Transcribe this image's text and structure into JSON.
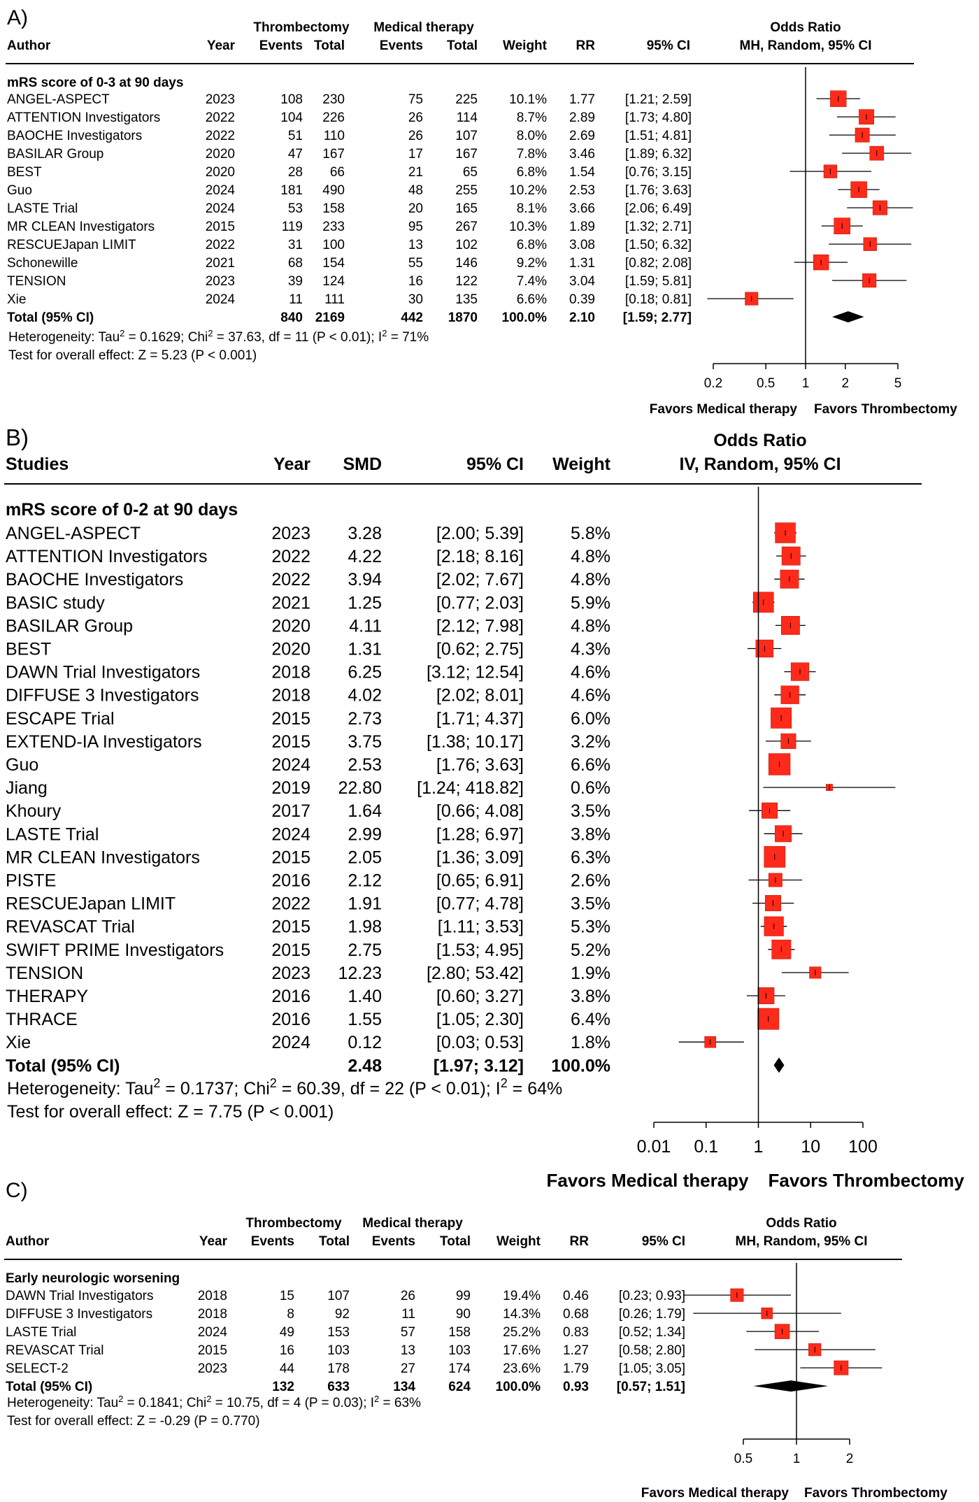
{
  "colors": {
    "box": "#ff2a1a",
    "box_stroke": "#b01000",
    "line": "#000000",
    "diamond": "#000000"
  },
  "chart_data": [
    {
      "type": "forest",
      "panel_label": "A)",
      "title": "Odds Ratio",
      "subtitle": "MH, Random, 95% CI",
      "group_header_1": "Thrombectomy",
      "group_header_2": "Medical therapy",
      "columns": [
        "Author",
        "Year",
        "Events",
        "Total",
        "Events",
        "Total",
        "Weight",
        "RR",
        "95% CI"
      ],
      "subgroup": "mRS score of 0-3 at 90 days",
      "scale": "log",
      "xlim": [
        0.2,
        5
      ],
      "xticks": [
        0.2,
        0.5,
        1,
        2,
        5
      ],
      "xtick_labels": [
        "0.2",
        "0.5",
        "1",
        "2",
        "5"
      ],
      "left_label": "Favors Medical therapy",
      "right_label": "Favors Thrombectomy",
      "studies": [
        {
          "name": "ANGEL-ASPECT",
          "year": "2023",
          "ev1": "108",
          "tot1": "230",
          "ev2": "75",
          "tot2": "225",
          "weight": "10.1%",
          "est_label": "1.77",
          "ci_label": "[1.21; 2.59]",
          "est": 1.77,
          "lo": 1.21,
          "hi": 2.59,
          "w": 10.1
        },
        {
          "name": "ATTENTION Investigators",
          "year": "2022",
          "ev1": "104",
          "tot1": "226",
          "ev2": "26",
          "tot2": "114",
          "weight": "8.7%",
          "est_label": "2.89",
          "ci_label": "[1.73; 4.80]",
          "est": 2.89,
          "lo": 1.73,
          "hi": 4.8,
          "w": 8.7
        },
        {
          "name": "BAOCHE Investigators",
          "year": "2022",
          "ev1": "51",
          "tot1": "110",
          "ev2": "26",
          "tot2": "107",
          "weight": "8.0%",
          "est_label": "2.69",
          "ci_label": "[1.51; 4.81]",
          "est": 2.69,
          "lo": 1.51,
          "hi": 4.81,
          "w": 8.0
        },
        {
          "name": "BASILAR Group",
          "year": "2020",
          "ev1": "47",
          "tot1": "167",
          "ev2": "17",
          "tot2": "167",
          "weight": "7.8%",
          "est_label": "3.46",
          "ci_label": "[1.89; 6.32]",
          "est": 3.46,
          "lo": 1.89,
          "hi": 6.32,
          "w": 7.8
        },
        {
          "name": "BEST",
          "year": "2020",
          "ev1": "28",
          "tot1": "66",
          "ev2": "21",
          "tot2": "65",
          "weight": "6.8%",
          "est_label": "1.54",
          "ci_label": "[0.76; 3.15]",
          "est": 1.54,
          "lo": 0.76,
          "hi": 3.15,
          "w": 6.8
        },
        {
          "name": "Guo",
          "year": "2024",
          "ev1": "181",
          "tot1": "490",
          "ev2": "48",
          "tot2": "255",
          "weight": "10.2%",
          "est_label": "2.53",
          "ci_label": "[1.76; 3.63]",
          "est": 2.53,
          "lo": 1.76,
          "hi": 3.63,
          "w": 10.2
        },
        {
          "name": "LASTE Trial",
          "year": "2024",
          "ev1": "53",
          "tot1": "158",
          "ev2": "20",
          "tot2": "165",
          "weight": "8.1%",
          "est_label": "3.66",
          "ci_label": "[2.06; 6.49]",
          "est": 3.66,
          "lo": 2.06,
          "hi": 6.49,
          "w": 8.1
        },
        {
          "name": "MR CLEAN Investigators",
          "year": "2015",
          "ev1": "119",
          "tot1": "233",
          "ev2": "95",
          "tot2": "267",
          "weight": "10.3%",
          "est_label": "1.89",
          "ci_label": "[1.32; 2.71]",
          "est": 1.89,
          "lo": 1.32,
          "hi": 2.71,
          "w": 10.3
        },
        {
          "name": "RESCUEJapan LIMIT",
          "year": "2022",
          "ev1": "31",
          "tot1": "100",
          "ev2": "13",
          "tot2": "102",
          "weight": "6.8%",
          "est_label": "3.08",
          "ci_label": "[1.50; 6.32]",
          "est": 3.08,
          "lo": 1.5,
          "hi": 6.32,
          "w": 6.8
        },
        {
          "name": "Schonewille",
          "year": "2021",
          "ev1": "68",
          "tot1": "154",
          "ev2": "55",
          "tot2": "146",
          "weight": "9.2%",
          "est_label": "1.31",
          "ci_label": "[0.82; 2.08]",
          "est": 1.31,
          "lo": 0.82,
          "hi": 2.08,
          "w": 9.2
        },
        {
          "name": "TENSION",
          "year": "2023",
          "ev1": "39",
          "tot1": "124",
          "ev2": "16",
          "tot2": "122",
          "weight": "7.4%",
          "est_label": "3.04",
          "ci_label": "[1.59; 5.81]",
          "est": 3.04,
          "lo": 1.59,
          "hi": 5.81,
          "w": 7.4
        },
        {
          "name": "Xie",
          "year": "2024",
          "ev1": "11",
          "tot1": "111",
          "ev2": "30",
          "tot2": "135",
          "weight": "6.6%",
          "est_label": "0.39",
          "ci_label": "[0.18; 0.81]",
          "est": 0.39,
          "lo": 0.18,
          "hi": 0.81,
          "w": 6.6
        }
      ],
      "total": {
        "name": "Total (95% CI)",
        "ev1": "840",
        "tot1": "2169",
        "ev2": "442",
        "tot2": "1870",
        "weight": "100.0%",
        "est_label": "2.10",
        "ci_label": "[1.59; 2.77]",
        "est": 2.1,
        "lo": 1.59,
        "hi": 2.77
      },
      "heterogeneity": {
        "a": "Heterogeneity: Tau",
        "b": " = 0.1629; Chi",
        "c": " = 37.63, df = 11 (P < 0.01); I",
        "d": " = 71%",
        "sup": "2"
      },
      "overall": "Test for overall effect: Z = 5.23 (P < 0.001)"
    },
    {
      "type": "forest",
      "panel_label": "B)",
      "title": "Odds Ratio",
      "subtitle": "IV, Random, 95% CI",
      "columns": [
        "Studies",
        "Year",
        "SMD",
        "95% CI",
        "Weight"
      ],
      "subgroup": "mRS score of 0-2 at 90 days",
      "scale": "log",
      "xlim": [
        0.01,
        100
      ],
      "xticks": [
        0.01,
        0.1,
        1,
        10,
        100
      ],
      "xtick_labels": [
        "0.01",
        "0.1",
        "1",
        "10",
        "100"
      ],
      "left_label": "Favors Medical therapy",
      "right_label": "Favors Thrombectomy",
      "studies": [
        {
          "name": "ANGEL-ASPECT",
          "year": "2023",
          "est_label": "3.28",
          "ci_label": "[2.00;   5.39]",
          "weight": "5.8%",
          "est": 3.28,
          "lo": 2.0,
          "hi": 5.39,
          "w": 5.8
        },
        {
          "name": "ATTENTION Investigators",
          "year": "2022",
          "est_label": "4.22",
          "ci_label": "[2.18;   8.16]",
          "weight": "4.8%",
          "est": 4.22,
          "lo": 2.18,
          "hi": 8.16,
          "w": 4.8
        },
        {
          "name": "BAOCHE Investigators",
          "year": "2022",
          "est_label": "3.94",
          "ci_label": "[2.02;   7.67]",
          "weight": "4.8%",
          "est": 3.94,
          "lo": 2.02,
          "hi": 7.67,
          "w": 4.8
        },
        {
          "name": "BASIC study",
          "year": "2021",
          "est_label": "1.25",
          "ci_label": "[0.77;   2.03]",
          "weight": "5.9%",
          "est": 1.25,
          "lo": 0.77,
          "hi": 2.03,
          "w": 5.9
        },
        {
          "name": "BASILAR Group",
          "year": "2020",
          "est_label": "4.11",
          "ci_label": "[2.12;   7.98]",
          "weight": "4.8%",
          "est": 4.11,
          "lo": 2.12,
          "hi": 7.98,
          "w": 4.8
        },
        {
          "name": "BEST",
          "year": "2020",
          "est_label": "1.31",
          "ci_label": "[0.62;   2.75]",
          "weight": "4.3%",
          "est": 1.31,
          "lo": 0.62,
          "hi": 2.75,
          "w": 4.3
        },
        {
          "name": "DAWN Trial Investigators",
          "year": "2018",
          "est_label": "6.25",
          "ci_label": "[3.12; 12.54]",
          "weight": "4.6%",
          "est": 6.25,
          "lo": 3.12,
          "hi": 12.54,
          "w": 4.6
        },
        {
          "name": "DIFFUSE 3 Investigators",
          "year": "2018",
          "est_label": "4.02",
          "ci_label": "[2.02;   8.01]",
          "weight": "4.6%",
          "est": 4.02,
          "lo": 2.02,
          "hi": 8.01,
          "w": 4.6
        },
        {
          "name": "ESCAPE Trial",
          "year": "2015",
          "est_label": "2.73",
          "ci_label": "[1.71;   4.37]",
          "weight": "6.0%",
          "est": 2.73,
          "lo": 1.71,
          "hi": 4.37,
          "w": 6.0
        },
        {
          "name": "EXTEND-IA Investigators",
          "year": "2015",
          "est_label": "3.75",
          "ci_label": "[1.38; 10.17]",
          "weight": "3.2%",
          "est": 3.75,
          "lo": 1.38,
          "hi": 10.17,
          "w": 3.2
        },
        {
          "name": "Guo",
          "year": "2024",
          "est_label": "2.53",
          "ci_label": "[1.76;   3.63]",
          "weight": "6.6%",
          "est": 2.53,
          "lo": 1.76,
          "hi": 3.63,
          "w": 6.6
        },
        {
          "name": "Jiang",
          "year": "2019",
          "est_label": "22.80",
          "ci_label": "[1.24; 418.82]",
          "weight": "0.6%",
          "est": 22.8,
          "lo": 1.24,
          "hi": 418.82,
          "w": 0.6
        },
        {
          "name": "Khoury",
          "year": "2017",
          "est_label": "1.64",
          "ci_label": "[0.66;   4.08]",
          "weight": "3.5%",
          "est": 1.64,
          "lo": 0.66,
          "hi": 4.08,
          "w": 3.5
        },
        {
          "name": "LASTE Trial",
          "year": "2024",
          "est_label": "2.99",
          "ci_label": "[1.28;   6.97]",
          "weight": "3.8%",
          "est": 2.99,
          "lo": 1.28,
          "hi": 6.97,
          "w": 3.8
        },
        {
          "name": "MR CLEAN Investigators",
          "year": "2015",
          "est_label": "2.05",
          "ci_label": "[1.36;   3.09]",
          "weight": "6.3%",
          "est": 2.05,
          "lo": 1.36,
          "hi": 3.09,
          "w": 6.3
        },
        {
          "name": "PISTE",
          "year": "2016",
          "est_label": "2.12",
          "ci_label": "[0.65;   6.91]",
          "weight": "2.6%",
          "est": 2.12,
          "lo": 0.65,
          "hi": 6.91,
          "w": 2.6
        },
        {
          "name": "RESCUEJapan LIMIT",
          "year": "2022",
          "est_label": "1.91",
          "ci_label": "[0.77;   4.78]",
          "weight": "3.5%",
          "est": 1.91,
          "lo": 0.77,
          "hi": 4.78,
          "w": 3.5
        },
        {
          "name": "REVASCAT Trial",
          "year": "2015",
          "est_label": "1.98",
          "ci_label": "[1.11;   3.53]",
          "weight": "5.3%",
          "est": 1.98,
          "lo": 1.11,
          "hi": 3.53,
          "w": 5.3
        },
        {
          "name": "SWIFT PRIME Investigators",
          "year": "2015",
          "est_label": "2.75",
          "ci_label": "[1.53;   4.95]",
          "weight": "5.2%",
          "est": 2.75,
          "lo": 1.53,
          "hi": 4.95,
          "w": 5.2
        },
        {
          "name": "TENSION",
          "year": "2023",
          "est_label": "12.23",
          "ci_label": "[2.80; 53.42]",
          "weight": "1.9%",
          "est": 12.23,
          "lo": 2.8,
          "hi": 53.42,
          "w": 1.9
        },
        {
          "name": "THERAPY",
          "year": "2016",
          "est_label": "1.40",
          "ci_label": "[0.60;   3.27]",
          "weight": "3.8%",
          "est": 1.4,
          "lo": 0.6,
          "hi": 3.27,
          "w": 3.8
        },
        {
          "name": "THRACE",
          "year": "2016",
          "est_label": "1.55",
          "ci_label": "[1.05;   2.30]",
          "weight": "6.4%",
          "est": 1.55,
          "lo": 1.05,
          "hi": 2.3,
          "w": 6.4
        },
        {
          "name": "Xie",
          "year": "2024",
          "est_label": "0.12",
          "ci_label": "[0.03;   0.53]",
          "weight": "1.8%",
          "est": 0.12,
          "lo": 0.03,
          "hi": 0.53,
          "w": 1.8
        }
      ],
      "total": {
        "name": "Total (95% CI)",
        "est_label": "2.48",
        "ci_label": "[1.97;   3.12]",
        "weight": "100.0%",
        "est": 2.48,
        "lo": 1.97,
        "hi": 3.12
      },
      "heterogeneity": {
        "a": "Heterogeneity: Tau",
        "b": " = 0.1737; Chi",
        "c": " = 60.39, df = 22 (P < 0.01); I",
        "d": " = 64%",
        "sup": "2"
      },
      "overall": "Test for overall effect: Z = 7.75 (P < 0.001)"
    },
    {
      "type": "forest",
      "panel_label": "C)",
      "title": "Odds Ratio",
      "subtitle": "MH, Random, 95% CI",
      "group_header_1": "Thrombectomy",
      "group_header_2": "Medical therapy",
      "columns": [
        "Author",
        "Year",
        "Events",
        "Total",
        "Events",
        "Total",
        "Weight",
        "RR",
        "95% CI"
      ],
      "subgroup": "Early neurologic worsening",
      "scale": "log",
      "xlim": [
        0.5,
        2
      ],
      "xticks": [
        0.5,
        1,
        2
      ],
      "xtick_labels": [
        "0.5",
        "1",
        "2"
      ],
      "left_label": "Favors Medical therapy",
      "right_label": "Favors Thrombectomy",
      "studies": [
        {
          "name": "DAWN Trial Investigators",
          "year": "2018",
          "ev1": "15",
          "tot1": "107",
          "ev2": "26",
          "tot2": "99",
          "weight": "19.4%",
          "est_label": "0.46",
          "ci_label": "[0.23; 0.93]",
          "est": 0.46,
          "lo": 0.23,
          "hi": 0.93,
          "w": 19.4
        },
        {
          "name": "DIFFUSE 3 Investigators",
          "year": "2018",
          "ev1": "8",
          "tot1": "92",
          "ev2": "11",
          "tot2": "90",
          "weight": "14.3%",
          "est_label": "0.68",
          "ci_label": "[0.26; 1.79]",
          "est": 0.68,
          "lo": 0.26,
          "hi": 1.79,
          "w": 14.3
        },
        {
          "name": "LASTE Trial",
          "year": "2024",
          "ev1": "49",
          "tot1": "153",
          "ev2": "57",
          "tot2": "158",
          "weight": "25.2%",
          "est_label": "0.83",
          "ci_label": "[0.52; 1.34]",
          "est": 0.83,
          "lo": 0.52,
          "hi": 1.34,
          "w": 25.2
        },
        {
          "name": "REVASCAT Trial",
          "year": "2015",
          "ev1": "16",
          "tot1": "103",
          "ev2": "13",
          "tot2": "103",
          "weight": "17.6%",
          "est_label": "1.27",
          "ci_label": "[0.58; 2.80]",
          "est": 1.27,
          "lo": 0.58,
          "hi": 2.8,
          "w": 17.6
        },
        {
          "name": "SELECT-2",
          "year": "2023",
          "ev1": "44",
          "tot1": "178",
          "ev2": "27",
          "tot2": "174",
          "weight": "23.6%",
          "est_label": "1.79",
          "ci_label": "[1.05; 3.05]",
          "est": 1.79,
          "lo": 1.05,
          "hi": 3.05,
          "w": 23.6
        }
      ],
      "total": {
        "name": "Total (95% CI)",
        "ev1": "132",
        "tot1": "633",
        "ev2": "134",
        "tot2": "624",
        "weight": "100.0%",
        "est_label": "0.93",
        "ci_label": "[0.57; 1.51]",
        "est": 0.93,
        "lo": 0.57,
        "hi": 1.51
      },
      "heterogeneity": {
        "a": "Heterogeneity: Tau",
        "b": " = 0.1841; Chi",
        "c": " = 10.75, df = 4 (P = 0.03); I",
        "d": " = 63%",
        "sup": "2"
      },
      "overall": "Test for overall effect: Z = -0.29 (P = 0.770)"
    }
  ]
}
